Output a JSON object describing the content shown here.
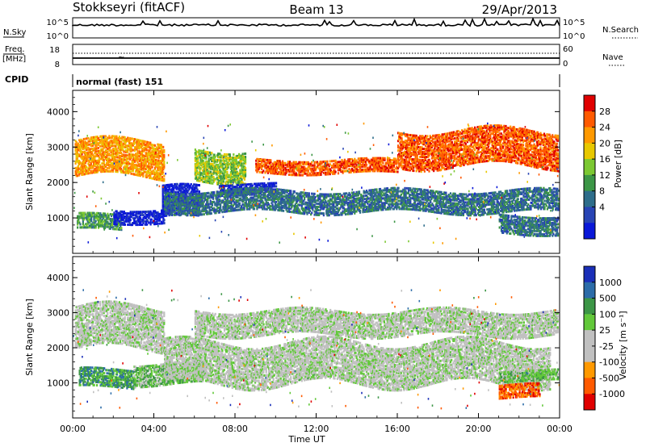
{
  "header": {
    "station": "Stokkseyri (fitACF)",
    "beam": "Beam 13",
    "date": "29/Apr/2013"
  },
  "top_panels": {
    "nsky_label": "N.Sky",
    "nsky_ticks": [
      "10^5",
      "10^0"
    ],
    "nsearch_label": "N.Search",
    "nsearch_ticks": [
      "10^5",
      "10^0"
    ],
    "freq_label": "Freq.",
    "freq_unit": "[MHz]",
    "freq_ticks": [
      "18",
      "8"
    ],
    "nave_label": "Nave",
    "nave_ticks": [
      "60",
      "0"
    ],
    "cpid_label": "CPID",
    "cpid_text": "normal (fast) 151"
  },
  "chart_data": [
    {
      "type": "heatmap",
      "quantity": "Power",
      "ylabel": "Slant Range [km]",
      "ylim": [
        0,
        4600
      ],
      "yticks": [
        1000,
        2000,
        3000,
        4000
      ],
      "xlim": [
        0,
        24
      ],
      "xticks": [
        "00:00",
        "04:00",
        "08:00",
        "12:00",
        "16:00",
        "20:00",
        "00:00"
      ],
      "colorbar": {
        "label": "Power [dB]",
        "ticks": [
          "28",
          "24",
          "20",
          "16",
          "12",
          "8",
          "4"
        ],
        "colors": [
          "#e00000",
          "#ff5a00",
          "#ff9900",
          "#e8c800",
          "#7cc832",
          "#3c9646",
          "#2e6d8a",
          "#2844b4",
          "#0a18d8"
        ]
      },
      "bands": [
        {
          "t0": 0.1,
          "t1": 4.5,
          "r0": 2200,
          "r1": 3200,
          "level": 2
        },
        {
          "t0": 0.2,
          "t1": 2.4,
          "r0": 700,
          "r1": 1150,
          "level": 5
        },
        {
          "t0": 2.0,
          "t1": 4.5,
          "r0": 900,
          "r1": 1300,
          "level": 8
        },
        {
          "t0": 4.4,
          "t1": 6.2,
          "r0": 1000,
          "r1": 1900,
          "level": 8
        },
        {
          "t0": 6.0,
          "t1": 8.5,
          "r0": 2100,
          "r1": 3000,
          "level": 4
        },
        {
          "t0": 7.2,
          "t1": 10.0,
          "r0": 1700,
          "r1": 2000,
          "level": 8
        },
        {
          "t0": 4.5,
          "t1": 23.9,
          "r0": 1200,
          "r1": 1800,
          "level": 6
        },
        {
          "t0": 9.0,
          "t1": 16.0,
          "r0": 2300,
          "r1": 2700,
          "level": 1
        },
        {
          "t0": 16.0,
          "t1": 23.9,
          "r0": 2500,
          "r1": 3500,
          "level": 1
        },
        {
          "t0": 21.0,
          "t1": 23.9,
          "r0": 600,
          "r1": 1100,
          "level": 6
        }
      ]
    },
    {
      "type": "heatmap",
      "quantity": "Velocity",
      "ylabel": "Slant Range [km]",
      "xlabel": "Time UT",
      "ylim": [
        0,
        4600
      ],
      "yticks": [
        1000,
        2000,
        3000,
        4000
      ],
      "xlim": [
        0,
        24
      ],
      "xticks": [
        "00:00",
        "04:00",
        "08:00",
        "12:00",
        "16:00",
        "20:00",
        "00:00"
      ],
      "colorbar": {
        "label": "Velocity [m s⁻¹]",
        "ticks": [
          "1000",
          "500",
          "100",
          "25",
          "-25",
          "-100",
          "-500",
          "-1000"
        ],
        "colors": [
          "#1a2fb8",
          "#2c6ca8",
          "#3c9646",
          "#62c83a",
          "#c0c0c0",
          "#c0c0c0",
          "#ff9900",
          "#ff5a00",
          "#e00000"
        ]
      },
      "bands": [
        {
          "t0": 0.1,
          "t1": 4.5,
          "r0": 2000,
          "r1": 3200,
          "level": 4
        },
        {
          "t0": 0.3,
          "t1": 3.0,
          "r0": 900,
          "r1": 1400,
          "level": 2
        },
        {
          "t0": 3.0,
          "t1": 6.5,
          "r0": 1000,
          "r1": 1600,
          "level": 3
        },
        {
          "t0": 4.5,
          "t1": 23.5,
          "r0": 1000,
          "r1": 2200,
          "level": 4
        },
        {
          "t0": 6.0,
          "t1": 23.9,
          "r0": 2400,
          "r1": 3100,
          "level": 4
        },
        {
          "t0": 21.0,
          "t1": 23.9,
          "r0": 1100,
          "r1": 1400,
          "level": 3
        },
        {
          "t0": 21.0,
          "t1": 23.0,
          "r0": 600,
          "r1": 1000,
          "level": 7
        }
      ]
    }
  ]
}
